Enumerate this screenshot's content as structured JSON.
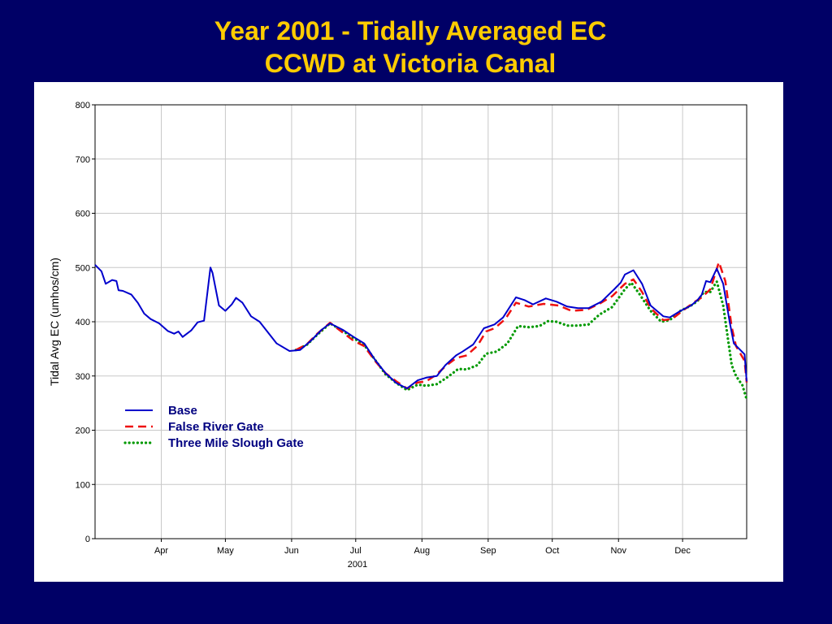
{
  "slide": {
    "title_line1": "Year 2001 - Tidally Averaged EC",
    "title_line2": "CCWD at Victoria Canal"
  },
  "colors": {
    "background": "#000066",
    "title": "#ffcc00",
    "base": "#0000cc",
    "false_river_gate": "#ee1111",
    "three_mile_slough_gate": "#009900"
  },
  "chart_data": {
    "type": "line",
    "title": "",
    "xlabel": "2001",
    "ylabel": "Tidal Avg EC (umhos/cm)",
    "ylim": [
      0,
      800
    ],
    "yticks": [
      0,
      100,
      200,
      300,
      400,
      500,
      600,
      700,
      800
    ],
    "xlim": [
      "2001-03-01",
      "2001-12-31"
    ],
    "xticks": [
      {
        "date": "2001-04-01",
        "label": "Apr"
      },
      {
        "date": "2001-05-01",
        "label": "May"
      },
      {
        "date": "2001-06-01",
        "label": "Jun"
      },
      {
        "date": "2001-07-01",
        "label": "Jul"
      },
      {
        "date": "2001-08-01",
        "label": "Aug"
      },
      {
        "date": "2001-09-01",
        "label": "Sep"
      },
      {
        "date": "2001-10-01",
        "label": "Oct"
      },
      {
        "date": "2001-11-01",
        "label": "Nov"
      },
      {
        "date": "2001-12-01",
        "label": "Dec"
      }
    ],
    "grid": true,
    "legend_position": "lower-left",
    "series": [
      {
        "name": "Base",
        "style": "solid",
        "points": [
          [
            "2001-03-01",
            505
          ],
          [
            "2001-03-04",
            493
          ],
          [
            "2001-03-06",
            470
          ],
          [
            "2001-03-09",
            477
          ],
          [
            "2001-03-11",
            475
          ],
          [
            "2001-03-12",
            458
          ],
          [
            "2001-03-14",
            457
          ],
          [
            "2001-03-18",
            450
          ],
          [
            "2001-03-21",
            435
          ],
          [
            "2001-03-24",
            415
          ],
          [
            "2001-03-27",
            405
          ],
          [
            "2001-03-31",
            397
          ],
          [
            "2001-04-04",
            383
          ],
          [
            "2001-04-07",
            378
          ],
          [
            "2001-04-09",
            382
          ],
          [
            "2001-04-11",
            372
          ],
          [
            "2001-04-15",
            384
          ],
          [
            "2001-04-18",
            399
          ],
          [
            "2001-04-21",
            402
          ],
          [
            "2001-04-24",
            500
          ],
          [
            "2001-04-25",
            490
          ],
          [
            "2001-04-28",
            430
          ],
          [
            "2001-05-01",
            420
          ],
          [
            "2001-05-04",
            432
          ],
          [
            "2001-05-06",
            444
          ],
          [
            "2001-05-09",
            435
          ],
          [
            "2001-05-13",
            410
          ],
          [
            "2001-05-17",
            400
          ],
          [
            "2001-05-21",
            380
          ],
          [
            "2001-05-25",
            360
          ],
          [
            "2001-05-31",
            346
          ],
          [
            "2001-06-05",
            348
          ],
          [
            "2001-06-10",
            365
          ],
          [
            "2001-06-15",
            385
          ],
          [
            "2001-06-19",
            397
          ],
          [
            "2001-06-25",
            385
          ],
          [
            "2001-06-30",
            372
          ],
          [
            "2001-07-05",
            360
          ],
          [
            "2001-07-10",
            330
          ],
          [
            "2001-07-15",
            305
          ],
          [
            "2001-07-20",
            287
          ],
          [
            "2001-07-25",
            277
          ],
          [
            "2001-07-30",
            292
          ],
          [
            "2001-08-03",
            297
          ],
          [
            "2001-08-08",
            300
          ],
          [
            "2001-08-12",
            320
          ],
          [
            "2001-08-17",
            338
          ],
          [
            "2001-08-20",
            345
          ],
          [
            "2001-08-25",
            358
          ],
          [
            "2001-08-30",
            388
          ],
          [
            "2001-09-04",
            395
          ],
          [
            "2001-09-08",
            408
          ],
          [
            "2001-09-14",
            445
          ],
          [
            "2001-09-18",
            440
          ],
          [
            "2001-09-22",
            432
          ],
          [
            "2001-09-28",
            443
          ],
          [
            "2001-10-03",
            437
          ],
          [
            "2001-10-08",
            428
          ],
          [
            "2001-10-13",
            425
          ],
          [
            "2001-10-18",
            425
          ],
          [
            "2001-10-24",
            437
          ],
          [
            "2001-10-30",
            460
          ],
          [
            "2001-11-02",
            472
          ],
          [
            "2001-11-04",
            487
          ],
          [
            "2001-11-08",
            495
          ],
          [
            "2001-11-12",
            470
          ],
          [
            "2001-11-16",
            430
          ],
          [
            "2001-11-22",
            410
          ],
          [
            "2001-11-25",
            408
          ],
          [
            "2001-11-30",
            420
          ],
          [
            "2001-12-05",
            430
          ],
          [
            "2001-12-08",
            440
          ],
          [
            "2001-12-10",
            450
          ],
          [
            "2001-12-12",
            475
          ],
          [
            "2001-12-14",
            473
          ],
          [
            "2001-12-17",
            498
          ],
          [
            "2001-12-20",
            470
          ],
          [
            "2001-12-23",
            400
          ],
          [
            "2001-12-25",
            360
          ],
          [
            "2001-12-30",
            340
          ],
          [
            "2001-12-31",
            290
          ]
        ]
      },
      {
        "name": "False River Gate",
        "style": "dashed",
        "points": [
          [
            "2001-06-03",
            348
          ],
          [
            "2001-06-08",
            358
          ],
          [
            "2001-06-13",
            378
          ],
          [
            "2001-06-19",
            398
          ],
          [
            "2001-06-25",
            380
          ],
          [
            "2001-06-30",
            365
          ],
          [
            "2001-07-05",
            355
          ],
          [
            "2001-07-10",
            328
          ],
          [
            "2001-07-15",
            305
          ],
          [
            "2001-07-20",
            290
          ],
          [
            "2001-07-25",
            277
          ],
          [
            "2001-07-30",
            288
          ],
          [
            "2001-08-03",
            290
          ],
          [
            "2001-08-08",
            303
          ],
          [
            "2001-08-12",
            318
          ],
          [
            "2001-08-17",
            333
          ],
          [
            "2001-08-22",
            338
          ],
          [
            "2001-08-27",
            356
          ],
          [
            "2001-08-31",
            382
          ],
          [
            "2001-09-04",
            388
          ],
          [
            "2001-09-09",
            405
          ],
          [
            "2001-09-14",
            435
          ],
          [
            "2001-09-20",
            428
          ],
          [
            "2001-09-27",
            433
          ],
          [
            "2001-10-04",
            430
          ],
          [
            "2001-10-10",
            420
          ],
          [
            "2001-10-17",
            422
          ],
          [
            "2001-10-23",
            433
          ],
          [
            "2001-10-29",
            447
          ],
          [
            "2001-11-04",
            470
          ],
          [
            "2001-11-08",
            478
          ],
          [
            "2001-11-12",
            455
          ],
          [
            "2001-11-16",
            425
          ],
          [
            "2001-11-22",
            403
          ],
          [
            "2001-11-26",
            405
          ],
          [
            "2001-12-01",
            420
          ],
          [
            "2001-12-06",
            435
          ],
          [
            "2001-12-10",
            445
          ],
          [
            "2001-12-14",
            460
          ],
          [
            "2001-12-18",
            510
          ],
          [
            "2001-12-21",
            475
          ],
          [
            "2001-12-24",
            390
          ],
          [
            "2001-12-26",
            355
          ],
          [
            "2001-12-30",
            328
          ],
          [
            "2001-12-31",
            288
          ]
        ]
      },
      {
        "name": "Three Mile Slough Gate",
        "style": "dotted",
        "points": [
          [
            "2001-06-03",
            348
          ],
          [
            "2001-06-08",
            357
          ],
          [
            "2001-06-13",
            376
          ],
          [
            "2001-06-19",
            397
          ],
          [
            "2001-06-25",
            383
          ],
          [
            "2001-06-30",
            370
          ],
          [
            "2001-07-05",
            357
          ],
          [
            "2001-07-10",
            330
          ],
          [
            "2001-07-15",
            303
          ],
          [
            "2001-07-20",
            287
          ],
          [
            "2001-07-25",
            274
          ],
          [
            "2001-07-30",
            284
          ],
          [
            "2001-08-03",
            282
          ],
          [
            "2001-08-08",
            285
          ],
          [
            "2001-08-13",
            298
          ],
          [
            "2001-08-18",
            313
          ],
          [
            "2001-08-22",
            312
          ],
          [
            "2001-08-27",
            320
          ],
          [
            "2001-08-31",
            341
          ],
          [
            "2001-09-05",
            345
          ],
          [
            "2001-09-10",
            360
          ],
          [
            "2001-09-15",
            392
          ],
          [
            "2001-09-20",
            390
          ],
          [
            "2001-09-25",
            392
          ],
          [
            "2001-09-29",
            401
          ],
          [
            "2001-10-03",
            400
          ],
          [
            "2001-10-08",
            393
          ],
          [
            "2001-10-13",
            393
          ],
          [
            "2001-10-18",
            395
          ],
          [
            "2001-10-23",
            413
          ],
          [
            "2001-10-29",
            427
          ],
          [
            "2001-11-04",
            460
          ],
          [
            "2001-11-07",
            472
          ],
          [
            "2001-11-11",
            450
          ],
          [
            "2001-11-16",
            420
          ],
          [
            "2001-11-21",
            400
          ],
          [
            "2001-11-25",
            403
          ],
          [
            "2001-11-30",
            420
          ],
          [
            "2001-12-05",
            430
          ],
          [
            "2001-12-08",
            438
          ],
          [
            "2001-12-11",
            455
          ],
          [
            "2001-12-14",
            455
          ],
          [
            "2001-12-17",
            474
          ],
          [
            "2001-12-20",
            430
          ],
          [
            "2001-12-22",
            375
          ],
          [
            "2001-12-24",
            320
          ],
          [
            "2001-12-26",
            300
          ],
          [
            "2001-12-29",
            283
          ],
          [
            "2001-12-31",
            257
          ]
        ]
      }
    ]
  }
}
